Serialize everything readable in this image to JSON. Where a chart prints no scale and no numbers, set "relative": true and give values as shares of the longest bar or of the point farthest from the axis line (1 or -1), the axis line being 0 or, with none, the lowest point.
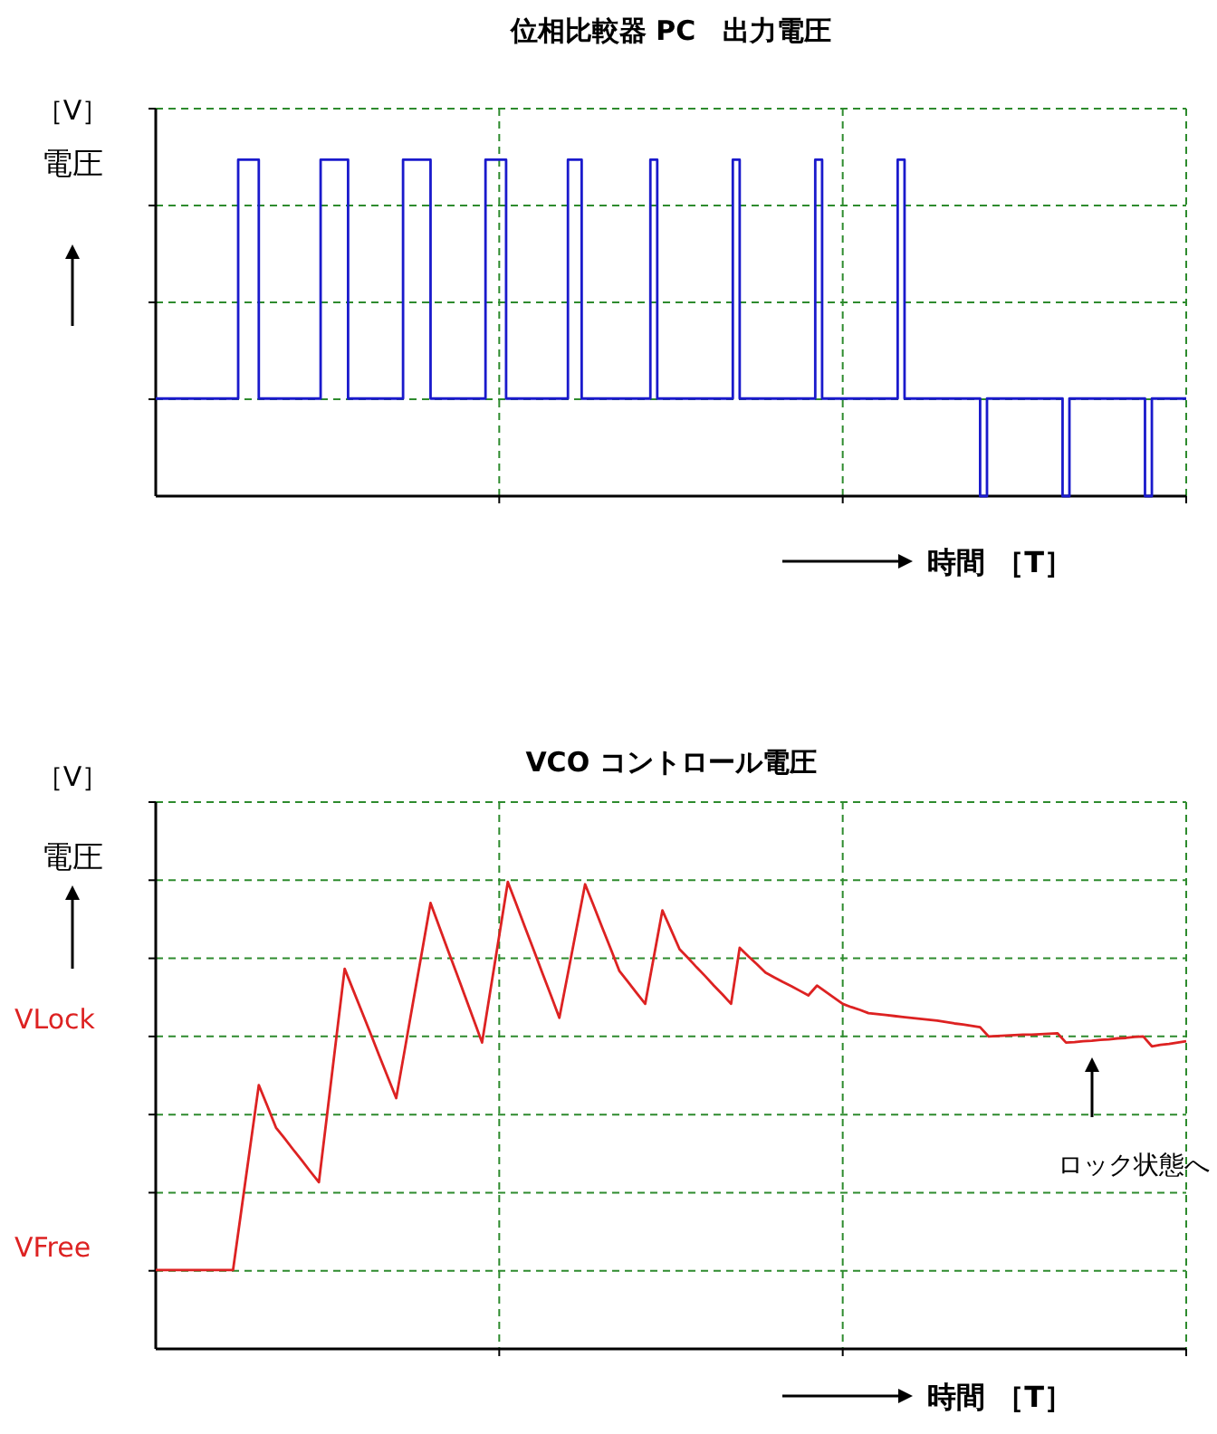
{
  "chart_data": [
    {
      "type": "step",
      "title": "位相比較器 PC　出力電圧",
      "ylabel": "電圧",
      "xlabel": "時間 ［T］",
      "relative": true,
      "grid": true,
      "marker": "none",
      "line_style": "solid",
      "annotations": [
        "［V］"
      ],
      "categories": [
        null,
        null,
        null,
        null,
        null,
        null,
        null,
        null,
        null,
        null,
        null,
        null,
        null,
        null,
        null,
        null,
        null,
        null,
        null,
        null,
        null,
        null,
        null,
        null,
        null,
        null,
        null,
        null,
        null,
        null,
        null,
        null,
        null,
        null,
        null,
        null,
        null,
        null,
        null,
        null,
        null,
        null,
        null,
        null,
        null,
        null,
        null,
        null,
        null,
        null,
        null,
        null,
        null,
        null,
        null,
        null,
        null,
        null,
        null,
        null,
        null,
        null,
        null,
        null,
        null,
        null,
        null,
        null,
        null,
        null,
        null,
        null,
        null,
        null,
        null,
        null,
        null,
        null,
        null,
        null,
        null,
        null,
        null,
        null,
        null,
        null,
        null,
        null,
        null,
        null,
        null,
        null,
        null,
        null,
        null,
        null,
        null,
        null,
        null,
        null,
        null,
        null,
        null,
        null,
        null,
        null,
        null,
        null,
        null,
        null,
        null,
        null,
        null,
        null,
        null,
        null,
        null,
        null,
        null,
        null,
        null,
        null,
        null,
        null,
        null,
        null,
        null,
        null,
        null,
        null,
        null,
        null,
        null,
        null,
        null,
        null,
        null,
        null,
        null,
        null,
        null,
        null,
        null,
        null,
        null,
        null,
        null,
        null,
        null,
        null,
        null
      ],
      "series": [
        {
          "color": "#1a1acc",
          "values": [
            0.29,
            0.29,
            0.29,
            0.29,
            0.29,
            0.29,
            0.29,
            0.29,
            0.29,
            0.29,
            0.29,
            0.29,
            1,
            1,
            1,
            0.29,
            0.29,
            0.29,
            0.29,
            0.29,
            0.29,
            0.29,
            0.29,
            0.29,
            1,
            1,
            1,
            1,
            0.29,
            0.29,
            0.29,
            0.29,
            0.29,
            0.29,
            0.29,
            0.29,
            1,
            1,
            1,
            1,
            0.29,
            0.29,
            0.29,
            0.29,
            0.29,
            0.29,
            0.29,
            0.29,
            1,
            1,
            1,
            0.29,
            0.29,
            0.29,
            0.29,
            0.29,
            0.29,
            0.29,
            0.29,
            0.29,
            1,
            1,
            0.29,
            0.29,
            0.29,
            0.29,
            0.29,
            0.29,
            0.29,
            0.29,
            0.29,
            0.29,
            1,
            0.29,
            0.29,
            0.29,
            0.29,
            0.29,
            0.29,
            0.29,
            0.29,
            0.29,
            0.29,
            0.29,
            1,
            0.29,
            0.29,
            0.29,
            0.29,
            0.29,
            0.29,
            0.29,
            0.29,
            0.29,
            0.29,
            0.29,
            1,
            0.29,
            0.29,
            0.29,
            0.29,
            0.29,
            0.29,
            0.29,
            0.29,
            0.29,
            0.29,
            0.29,
            1,
            0.29,
            0.29,
            0.29,
            0.29,
            0.29,
            0.29,
            0.29,
            0.29,
            0.29,
            0.29,
            0.29,
            0,
            0.29,
            0.29,
            0.29,
            0.29,
            0.29,
            0.29,
            0.29,
            0.29,
            0.29,
            0.29,
            0.29,
            0,
            0.29,
            0.29,
            0.29,
            0.29,
            0.29,
            0.29,
            0.29,
            0.29,
            0.29,
            0.29,
            0.29,
            0,
            0.29,
            0.29,
            0.29,
            0.29,
            0.29,
            0.29
          ]
        }
      ]
    },
    {
      "type": "line",
      "title": "VCO コントロール電圧",
      "ylabel": "電圧",
      "xlabel": "時間 ［T］",
      "relative": true,
      "grid": true,
      "marker": "none",
      "line_style": "solid",
      "annotations": [
        "［V］",
        "VLock",
        "VFree",
        "ロック状態へ"
      ],
      "categories": [
        null,
        null,
        null,
        null,
        null,
        null,
        null,
        null,
        null,
        null,
        null,
        null,
        null,
        null,
        null,
        null,
        null,
        null,
        null,
        null,
        null,
        null,
        null,
        null,
        null,
        null,
        null,
        null,
        null,
        null,
        null,
        null,
        null,
        null,
        null,
        null,
        null,
        null,
        null,
        null,
        null,
        null,
        null,
        null,
        null,
        null,
        null,
        null,
        null,
        null,
        null,
        null,
        null,
        null,
        null,
        null,
        null,
        null,
        null,
        null,
        null,
        null,
        null,
        null,
        null,
        null,
        null,
        null,
        null,
        null,
        null,
        null,
        null,
        null,
        null,
        null,
        null,
        null,
        null,
        null,
        null,
        null,
        null,
        null,
        null,
        null,
        null,
        null,
        null,
        null,
        null,
        null,
        null,
        null,
        null,
        null,
        null,
        null,
        null,
        null,
        null,
        null,
        null,
        null,
        null,
        null,
        null,
        null,
        null,
        null,
        null,
        null,
        null,
        null,
        null,
        null,
        null,
        null,
        null,
        null,
        null
      ],
      "series": [
        {
          "color": "#dd2222",
          "values": [
            0.169,
            0.169,
            0.169,
            0.169,
            0.169,
            0.169,
            0.169,
            0.169,
            0.169,
            0.169,
            0.301,
            0.433,
            0.565,
            0.52,
            0.474,
            0.451,
            0.427,
            0.404,
            0.38,
            0.357,
            0.509,
            0.662,
            0.814,
            0.768,
            0.722,
            0.676,
            0.629,
            0.583,
            0.537,
            0.641,
            0.746,
            0.85,
            0.955,
            0.905,
            0.855,
            0.806,
            0.756,
            0.706,
            0.656,
            0.771,
            0.885,
            1,
            0.952,
            0.903,
            0.855,
            0.806,
            0.758,
            0.709,
            0.804,
            0.9,
            0.995,
            0.949,
            0.902,
            0.856,
            0.809,
            0.786,
            0.762,
            0.739,
            0.839,
            0.939,
            0.898,
            0.856,
            0.837,
            0.817,
            0.798,
            0.778,
            0.759,
            0.739,
            0.859,
            0.841,
            0.824,
            0.806,
            0.796,
            0.786,
            0.777,
            0.767,
            0.757,
            0.778,
            0.765,
            0.752,
            0.739,
            0.732,
            0.726,
            0.719,
            0.717,
            0.715,
            0.713,
            0.711,
            0.709,
            0.707,
            0.705,
            0.703,
            0.7,
            0.697,
            0.695,
            0.692,
            0.689,
            0.669,
            0.67,
            0.671,
            0.672,
            0.673,
            0.673,
            0.674,
            0.675,
            0.676,
            0.656,
            0.657,
            0.659,
            0.66,
            0.662,
            0.663,
            0.665,
            0.666,
            0.668,
            0.669,
            0.648,
            0.651,
            0.653,
            0.656,
            0.659
          ]
        }
      ]
    }
  ]
}
